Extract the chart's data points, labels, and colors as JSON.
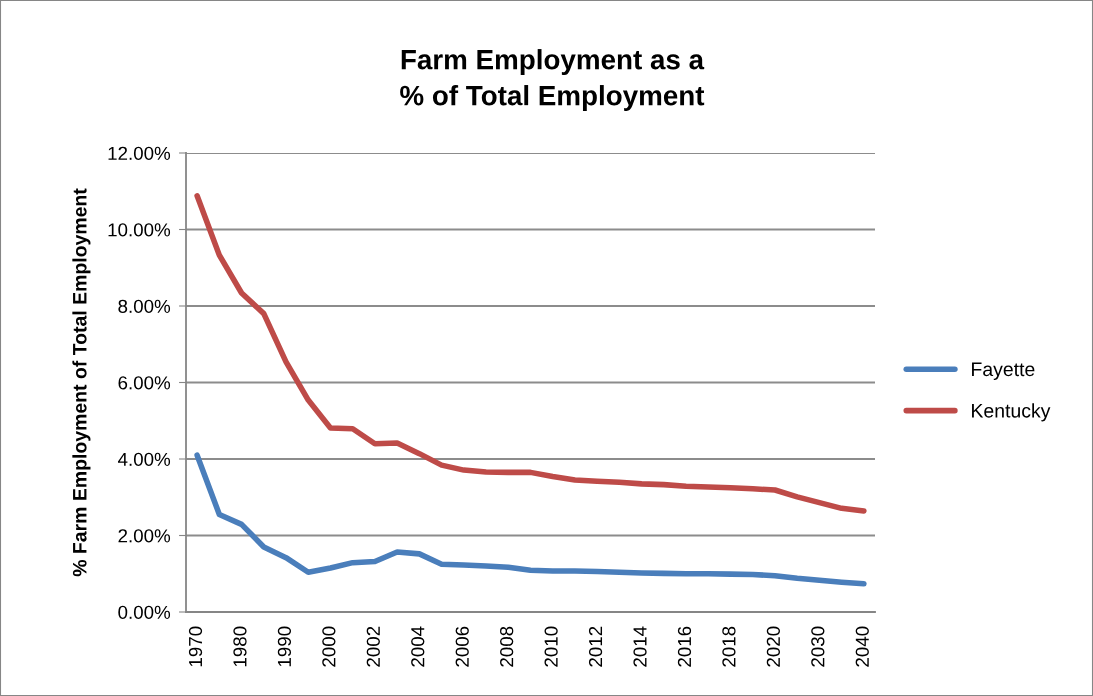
{
  "chart_data": {
    "type": "line",
    "title": "Farm Employment as a\n% of Total Employment",
    "ylabel": "% Farm Employment of Total Employment",
    "categories": [
      "1970",
      null,
      "1980",
      null,
      "1990",
      null,
      "2000",
      null,
      "2002",
      null,
      "2004",
      null,
      "2006",
      null,
      "2008",
      null,
      "2010",
      null,
      "2012",
      null,
      "2014",
      null,
      "2016",
      null,
      "2018",
      null,
      "2020",
      null,
      "2030",
      null,
      "2040"
    ],
    "series": [
      {
        "name": "Fayette",
        "color": "#4a7ebb",
        "values": [
          4.1,
          2.55,
          2.29,
          1.7,
          1.42,
          1.04,
          1.15,
          1.29,
          1.32,
          1.57,
          1.52,
          1.25,
          1.23,
          1.2,
          1.17,
          1.09,
          1.07,
          1.07,
          1.06,
          1.04,
          1.02,
          1.01,
          1.0,
          1.0,
          0.99,
          0.98,
          0.95,
          0.88,
          0.83,
          0.78,
          0.74
        ]
      },
      {
        "name": "Kentucky",
        "color": "#be4b48",
        "values": [
          10.88,
          9.33,
          8.34,
          7.8,
          6.54,
          5.54,
          4.81,
          4.79,
          4.4,
          4.42,
          4.14,
          3.84,
          3.71,
          3.66,
          3.65,
          3.65,
          3.54,
          3.45,
          3.42,
          3.39,
          3.35,
          3.33,
          3.29,
          3.27,
          3.25,
          3.22,
          3.19,
          3.01,
          2.86,
          2.71,
          2.64
        ]
      }
    ],
    "ylim": [
      0,
      12
    ],
    "yticks": [
      {
        "value": 0,
        "label": "0.00%"
      },
      {
        "value": 2,
        "label": "2.00%"
      },
      {
        "value": 4,
        "label": "4.00%"
      },
      {
        "value": 6,
        "label": "6.00%"
      },
      {
        "value": 8,
        "label": "8.00%"
      },
      {
        "value": 10,
        "label": "10.00%"
      },
      {
        "value": 12,
        "label": "12.00%"
      }
    ],
    "grid": "y",
    "legend": "right",
    "marker": "none",
    "line_style": "solid"
  }
}
